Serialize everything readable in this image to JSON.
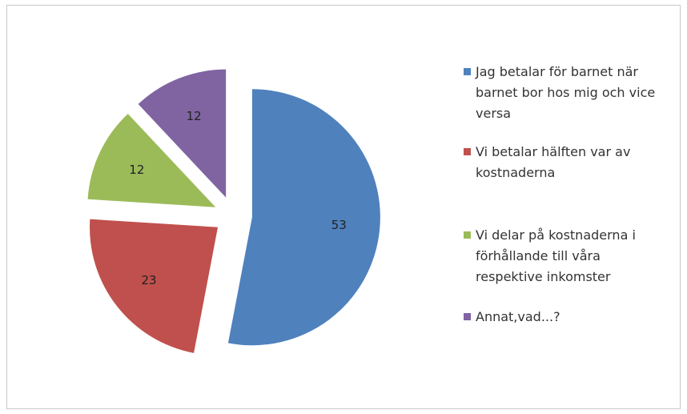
{
  "chart_data": {
    "type": "pie",
    "categories": [
      "Jag betalar för barnet när barnet bor hos mig och vice versa",
      "Vi betalar hälften var av kostnaderna",
      "Vi delar på kostnaderna i förhållande till våra respektive inkomster",
      "Annat,vad...?"
    ],
    "values": [
      53,
      23,
      12,
      12
    ],
    "colors": [
      "#4f81bd",
      "#c0504d",
      "#9bbb59",
      "#8064a2"
    ],
    "legend": "right",
    "exploded": true
  }
}
